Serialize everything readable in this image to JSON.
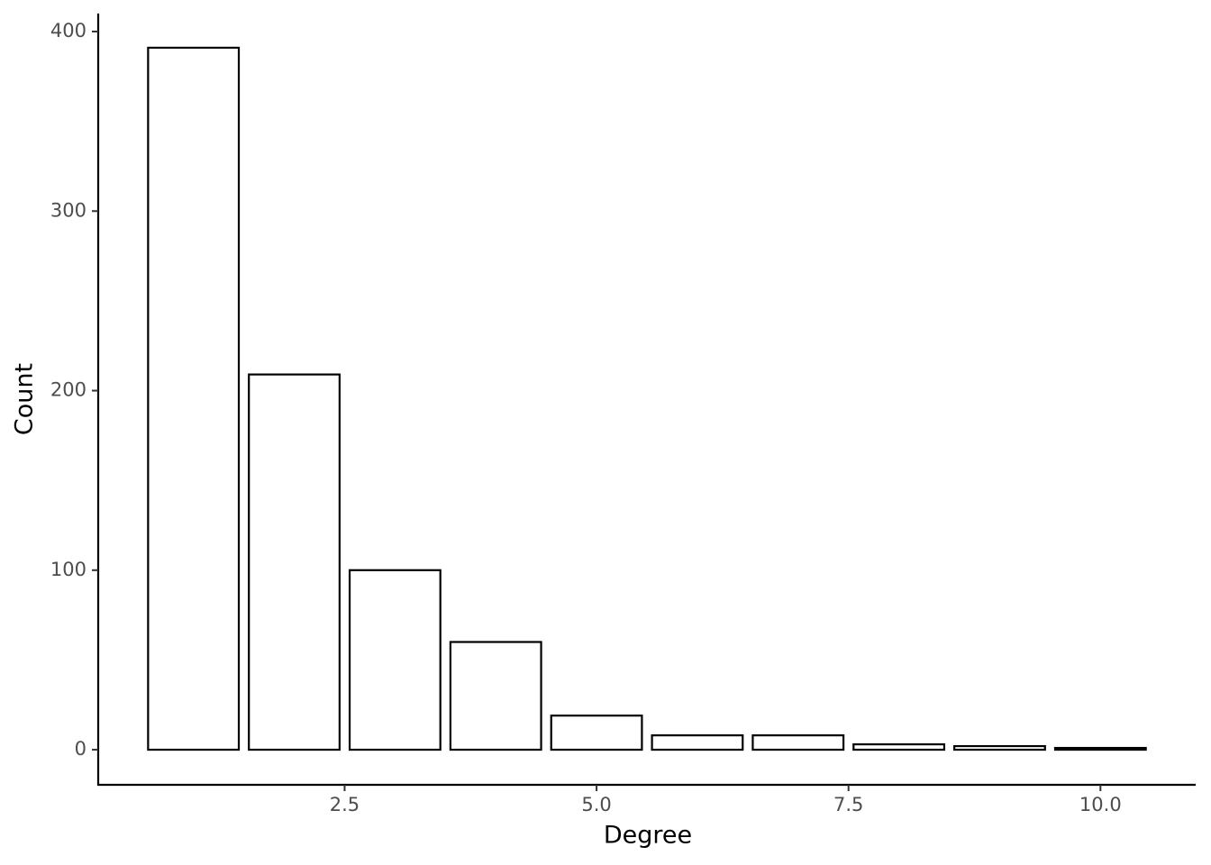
{
  "chart_data": {
    "type": "bar",
    "x_label": "Degree",
    "y_label": "Count",
    "x": [
      1,
      2,
      3,
      4,
      5,
      6,
      7,
      8,
      9,
      10
    ],
    "values": [
      391,
      209,
      100,
      60,
      19,
      8,
      8,
      3,
      2,
      1
    ],
    "color": "#ffffff",
    "edge_color": "#000000",
    "xlim": [
      0.055,
      10.945
    ],
    "ylim": [
      -19.55,
      410.05
    ],
    "xticks": [
      2.5,
      {
        "value": 5,
        "label": "5.0"
      },
      7.5,
      {
        "value": 10,
        "label": "10.0"
      }
    ],
    "yticks": [
      0,
      100,
      200,
      300,
      400
    ],
    "grid": false
  }
}
